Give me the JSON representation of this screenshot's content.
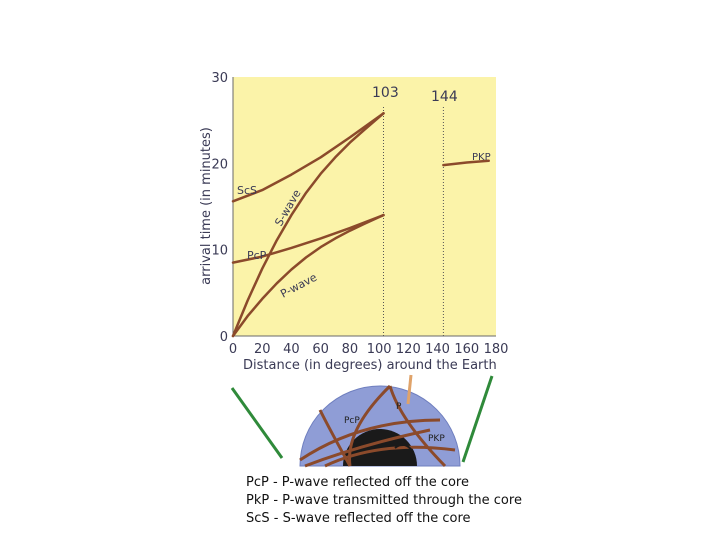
{
  "chart_data": {
    "type": "line",
    "xlabel": "Distance (in degrees) around the Earth",
    "ylabel": "arrival time (in minutes)",
    "xlim": [
      0,
      180
    ],
    "ylim": [
      0,
      30
    ],
    "x_ticks": [
      "0",
      "20",
      "40",
      "60",
      "80",
      "100",
      "120",
      "140",
      "160",
      "180"
    ],
    "y_ticks": [
      "0",
      "10",
      "20",
      "30"
    ],
    "grid": false,
    "series": [
      {
        "name": "P-wave",
        "x": [
          0,
          10,
          20,
          30,
          40,
          50,
          60,
          70,
          80,
          90,
          103
        ],
        "y": [
          0,
          2.3,
          4.3,
          6.1,
          7.7,
          9.1,
          10.3,
          11.3,
          12.2,
          13.0,
          14.0
        ]
      },
      {
        "name": "S-wave",
        "x": [
          0,
          10,
          20,
          30,
          40,
          50,
          60,
          70,
          80,
          90,
          103
        ],
        "y": [
          0,
          4.1,
          7.8,
          11.1,
          14.0,
          16.6,
          18.8,
          20.7,
          22.4,
          23.9,
          25.8
        ]
      },
      {
        "name": "PcP",
        "x": [
          0,
          20,
          40,
          60,
          80,
          103
        ],
        "y": [
          8.5,
          9.2,
          10.2,
          11.3,
          12.5,
          14.0
        ]
      },
      {
        "name": "ScS",
        "x": [
          0,
          20,
          40,
          60,
          80,
          103
        ],
        "y": [
          15.6,
          16.9,
          18.7,
          20.7,
          23.0,
          25.8
        ]
      },
      {
        "name": "PKP",
        "x": [
          144,
          160,
          175
        ],
        "y": [
          19.8,
          20.1,
          20.3
        ]
      }
    ],
    "annotations": [
      {
        "text": "103",
        "x": 103
      },
      {
        "text": "144",
        "x": 144
      }
    ],
    "colors": {
      "plot_bg": "#fbf3a9",
      "curve": "#8b4a2b",
      "axis_text": "#3a3a55",
      "dotted_line": "#555555"
    }
  },
  "diagram": {
    "labels": {
      "p": "P",
      "pcp": "PcP",
      "pkp": "PKP"
    },
    "colors": {
      "mantle": "#8f9dd6",
      "core": "#1a1a1a",
      "ray": "#8b4a2b",
      "green_line": "#2f8a3a",
      "orange_line": "#e0a36a"
    }
  },
  "legend": {
    "lines": [
      "PcP - P-wave reflected off the core",
      "PkP - P-wave transmitted through the core",
      "ScS - S-wave reflected off the core"
    ]
  }
}
